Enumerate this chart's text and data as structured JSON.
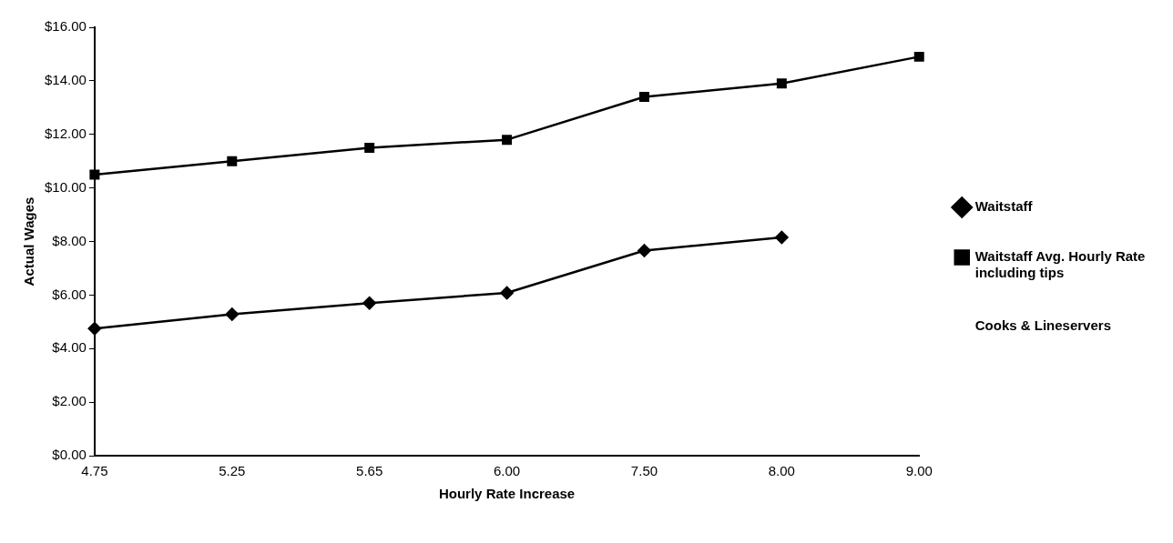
{
  "chart_data": {
    "type": "line",
    "xlabel": "Hourly Rate Increase",
    "ylabel": "Actual Wages",
    "categories": [
      "4.75",
      "5.25",
      "5.65",
      "6.00",
      "7.50",
      "8.00",
      "9.00"
    ],
    "series": [
      {
        "name": "Waitstaff",
        "color": "#000000",
        "marker": "diamond",
        "values": [
          4.75,
          5.28,
          5.7,
          6.08,
          7.66,
          8.15,
          null
        ]
      },
      {
        "name": "Waitstaff Avg. Hourly Rate including tips",
        "color": "#000000",
        "marker": "square",
        "values": [
          10.5,
          11.0,
          11.5,
          11.8,
          13.4,
          13.9,
          14.9
        ]
      },
      {
        "name": "Cooks & Lineservers",
        "marker": "none",
        "values": [
          null,
          null,
          null,
          null,
          null,
          null,
          null
        ]
      }
    ],
    "ylim": [
      0,
      16
    ],
    "yticks": [
      {
        "value": 0,
        "label": "$0.00"
      },
      {
        "value": 2,
        "label": "$2.00"
      },
      {
        "value": 4,
        "label": "$4.00"
      },
      {
        "value": 6,
        "label": "$6.00"
      },
      {
        "value": 8,
        "label": "$8.00"
      },
      {
        "value": 10,
        "label": "$10.00"
      },
      {
        "value": 12,
        "label": "$12.00"
      },
      {
        "value": 14,
        "label": "$14.00"
      },
      {
        "value": 16,
        "label": "$16.00"
      }
    ],
    "grid": false,
    "legend": "right"
  }
}
